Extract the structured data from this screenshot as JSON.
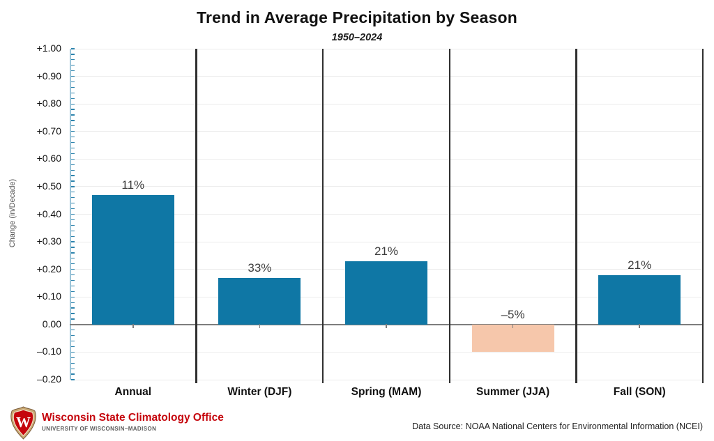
{
  "header": {
    "title": "Trend in Average Precipitation by Season",
    "subtitle": "1950–2024"
  },
  "chart_data": {
    "type": "bar",
    "title": "Trend in Average Precipitation by Season",
    "subtitle": "1950–2024",
    "categories": [
      "Annual",
      "Winter (DJF)",
      "Spring (MAM)",
      "Summer (JJA)",
      "Fall (SON)"
    ],
    "values": [
      0.47,
      0.17,
      0.23,
      -0.1,
      0.18
    ],
    "bar_labels": [
      "11%",
      "33%",
      "21%",
      "–5%",
      "21%"
    ],
    "ylabel": "Change (in/Decade)",
    "ylim": [
      -0.2,
      1.0
    ],
    "ytick_step": 0.1,
    "ytick_labels": [
      "+1.00",
      "+0.90",
      "+0.80",
      "+0.70",
      "+0.60",
      "+0.50",
      "+0.40",
      "+0.30",
      "+0.20",
      "+0.10",
      "0.00",
      "–0.10",
      "–0.20"
    ],
    "grid": true,
    "legend_position": "none",
    "colors": {
      "positive_bar": "#0f77a5",
      "negative_bar": "#f6c7ab",
      "separator": "#2f2f2f",
      "axis": "#9cc4d8",
      "tick": "#2e84ad",
      "gridline": "#ececec",
      "zero_line": "#7d7d7d"
    }
  },
  "footer": {
    "org_name": "Wisconsin State Climatology Office",
    "org_sub": "UNIVERSITY OF WISCONSIN–MADISON",
    "data_source": "Data Source: NOAA National Centers for Environmental Information (NCEI)",
    "brand_red": "#c5050c",
    "logo": "uw-crest-icon"
  }
}
